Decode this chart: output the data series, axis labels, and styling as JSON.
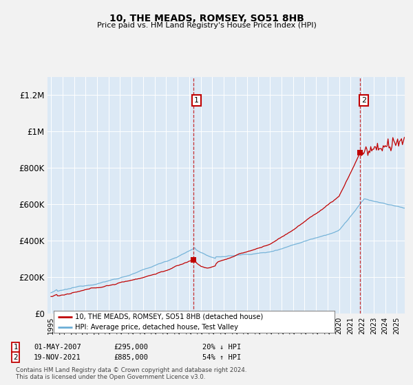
{
  "title": "10, THE MEADS, ROMSEY, SO51 8HB",
  "subtitle": "Price paid vs. HM Land Registry's House Price Index (HPI)",
  "fig_bg_color": "#f2f2f2",
  "plot_bg_color": "#dce9f5",
  "hpi_color": "#6baed6",
  "price_color": "#c00000",
  "sale1_date": "01-MAY-2007",
  "sale1_price": 295000,
  "sale1_label": "20% ↓ HPI",
  "sale2_date": "19-NOV-2021",
  "sale2_price": 885000,
  "sale2_label": "54% ↑ HPI",
  "ylabel_ticks": [
    "£0",
    "£200K",
    "£400K",
    "£600K",
    "£800K",
    "£1M",
    "£1.2M"
  ],
  "ytick_vals": [
    0,
    200000,
    400000,
    600000,
    800000,
    1000000,
    1200000
  ],
  "ylim": [
    0,
    1300000
  ],
  "footnote": "Contains HM Land Registry data © Crown copyright and database right 2024.\nThis data is licensed under the Open Government Licence v3.0.",
  "legend_label_red": "10, THE MEADS, ROMSEY, SO51 8HB (detached house)",
  "legend_label_blue": "HPI: Average price, detached house, Test Valley"
}
